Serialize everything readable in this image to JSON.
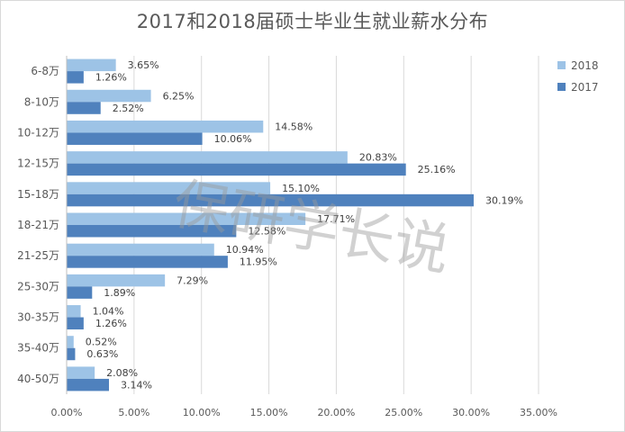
{
  "chart_data": {
    "type": "bar",
    "orientation": "horizontal",
    "title": "2017和2018届硕士毕业生就业薪水分布",
    "categories": [
      "6-8万",
      "8-10万",
      "10-12万",
      "12-15万",
      "15-18万",
      "18-21万",
      "21-25万",
      "25-30万",
      "30-35万",
      "35-40万",
      "40-50万"
    ],
    "series": [
      {
        "name": "2018",
        "color": "#9dc3e6",
        "values": [
          3.65,
          6.25,
          14.58,
          20.83,
          15.1,
          17.71,
          10.94,
          7.29,
          1.04,
          0.52,
          2.08
        ],
        "labels": [
          "3.65%",
          "6.25%",
          "14.58%",
          "20.83%",
          "15.10%",
          "17.71%",
          "10.94%",
          "7.29%",
          "1.04%",
          "0.52%",
          "2.08%"
        ]
      },
      {
        "name": "2017",
        "color": "#4f81bd",
        "values": [
          1.26,
          2.52,
          10.06,
          25.16,
          30.19,
          12.58,
          11.95,
          1.89,
          1.26,
          0.63,
          3.14
        ],
        "labels": [
          "1.26%",
          "2.52%",
          "10.06%",
          "25.16%",
          "30.19%",
          "12.58%",
          "11.95%",
          "1.89%",
          "1.26%",
          "0.63%",
          "3.14%"
        ]
      }
    ],
    "xlim": [
      0,
      35
    ],
    "xticks": [
      "0.00%",
      "5.00%",
      "10.00%",
      "15.00%",
      "20.00%",
      "25.00%",
      "30.00%",
      "35.00%"
    ],
    "grid": true,
    "legend_position": "top-right"
  },
  "watermark": "保研学长说"
}
